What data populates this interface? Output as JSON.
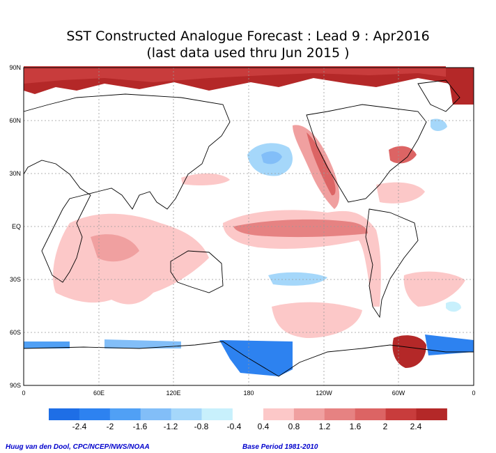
{
  "title": {
    "line1": "SST Constructed Analogue Forecast : Lead 9 : Apr2016",
    "line2": "(last data used thru Jun 2015 )"
  },
  "map": {
    "lat_labels": [
      "90N",
      "60N",
      "30N",
      "EQ",
      "30S",
      "60S",
      "90S"
    ],
    "lon_labels": [
      "0",
      "60E",
      "120E",
      "180",
      "120W",
      "60W",
      "0"
    ]
  },
  "colorbar": {
    "negative_labels": [
      "-2.4",
      "-2",
      "-1.6",
      "-1.2",
      "-0.8",
      "-0.4"
    ],
    "positive_labels": [
      "0.4",
      "0.8",
      "1.2",
      "1.6",
      "2",
      "2.4"
    ],
    "negative_colors": [
      "#1e6ee6",
      "#2d82f0",
      "#50a0f5",
      "#82bef8",
      "#a5d7fa",
      "#c8f0fc"
    ],
    "positive_colors": [
      "#fcc8c8",
      "#f0a0a0",
      "#e68282",
      "#dc6464",
      "#c83c3c",
      "#b42828"
    ]
  },
  "credits": {
    "left": "Huug van den Dool, CPC/NCEP/NWS/NOAA",
    "right": "Base Period 1981-2010"
  }
}
